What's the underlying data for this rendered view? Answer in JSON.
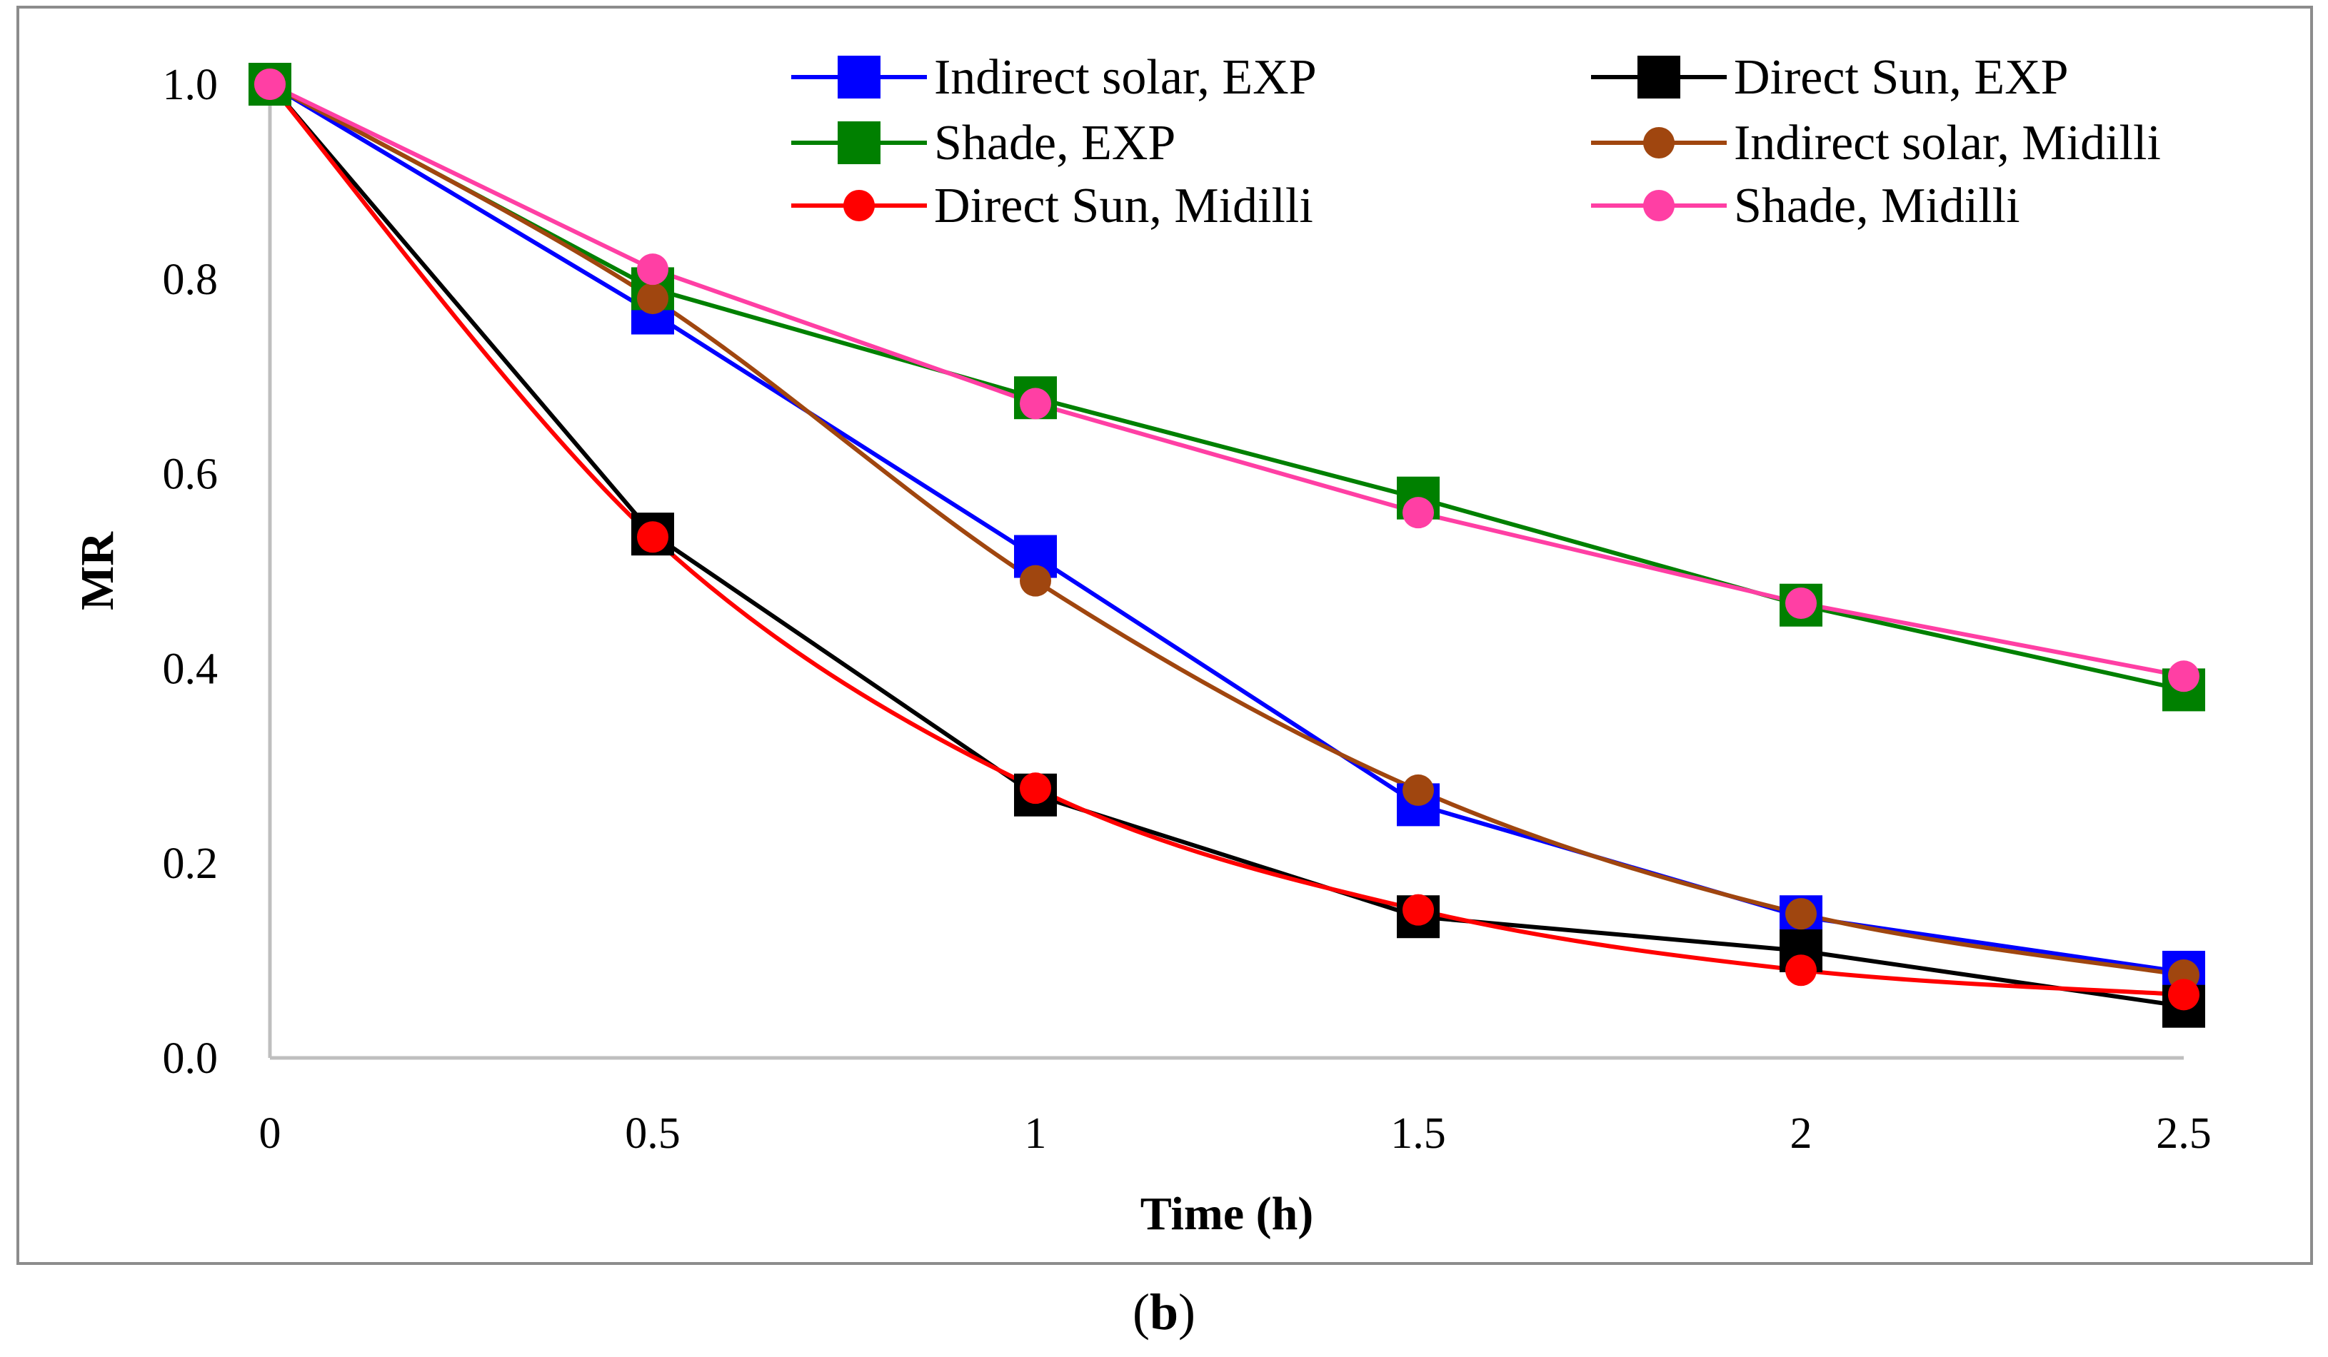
{
  "chart_data": {
    "type": "line",
    "title": "",
    "xlabel": "Time (h)",
    "ylabel": "MR",
    "x": [
      0,
      0.5,
      1,
      1.5,
      2,
      2.5
    ],
    "x_tick_labels": [
      "0",
      "0.5",
      "1",
      "1.5",
      "2",
      "2.5"
    ],
    "y_tick_labels": [
      "0.0",
      "0.2",
      "0.4",
      "0.6",
      "0.8",
      "1.0"
    ],
    "xlim": [
      0,
      2.5
    ],
    "ylim": [
      0,
      1.0
    ],
    "grid": false,
    "legend_position": "top-right",
    "caption_open": "(",
    "caption_letter": "b",
    "caption_close": ")",
    "series": [
      {
        "name": "Indirect solar, EXP",
        "values": [
          1.0,
          0.765,
          0.515,
          0.26,
          0.145,
          0.088
        ],
        "color": "#0000ff",
        "marker": "square",
        "smooth": false
      },
      {
        "name": "Direct Sun, EXP",
        "values": [
          1.0,
          0.538,
          0.27,
          0.145,
          0.11,
          0.053
        ],
        "color": "#000000",
        "marker": "square",
        "smooth": false
      },
      {
        "name": "Shade, EXP",
        "values": [
          1.0,
          0.79,
          0.678,
          0.575,
          0.465,
          0.378
        ],
        "color": "#008000",
        "marker": "square",
        "smooth": false
      },
      {
        "name": "Indirect solar, Midilli",
        "values": [
          1.0,
          0.78,
          0.49,
          0.275,
          0.148,
          0.085
        ],
        "color": "#a0460f",
        "marker": "circle",
        "smooth": true
      },
      {
        "name": "Direct Sun, Midilli",
        "values": [
          1.0,
          0.535,
          0.277,
          0.152,
          0.09,
          0.065
        ],
        "color": "#ff0000",
        "marker": "circle",
        "smooth": true
      },
      {
        "name": "Shade, Midilli",
        "values": [
          1.0,
          0.81,
          0.672,
          0.56,
          0.467,
          0.392
        ],
        "color": "#ff3fa4",
        "marker": "circle",
        "smooth": false
      }
    ]
  }
}
